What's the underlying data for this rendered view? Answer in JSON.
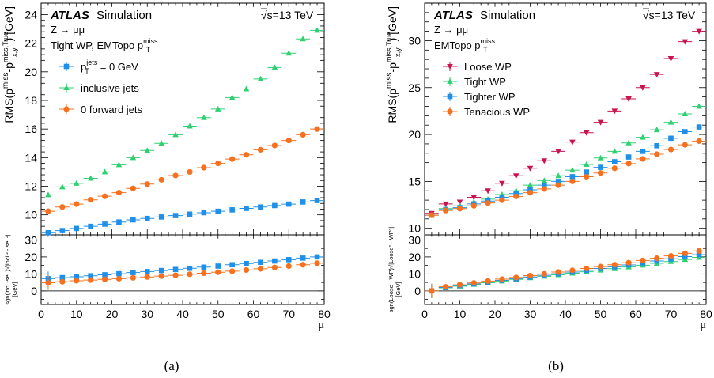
{
  "chart_data": [
    {
      "type": "scatter",
      "panel_label": "(a)",
      "header": {
        "experiment": "ATLAS",
        "status": "Simulation",
        "energy": "√s=13 TeV"
      },
      "annotations": [
        "Z → μμ",
        "Tight WP, EMTopo p",
        "miss",
        "T"
      ],
      "ylabel": "RMS(p",
      "ylabel_sup": "miss",
      "ylabel_mid": "-p",
      "ylabel_sup2": "miss,True",
      "ylabel_sub": "x,y",
      "ylabel_end": ") [GeV]",
      "xlabel": "μ",
      "ratio_ylabel": "sgn(incl.-sel.)√|incl.² - sel.²|",
      "ratio_ylabel_unit": "[GeV]",
      "xlim": [
        0,
        80
      ],
      "ylim": [
        8.6,
        24.8
      ],
      "ratio_ylim": [
        -8,
        33
      ],
      "xticks": [
        0,
        10,
        20,
        30,
        40,
        50,
        60,
        70,
        80
      ],
      "yticks": [
        10,
        12,
        14,
        16,
        18,
        20,
        22,
        24
      ],
      "ratio_yticks": [
        0,
        10,
        20,
        30
      ],
      "x": [
        2,
        6,
        10,
        14,
        18,
        22,
        26,
        30,
        34,
        38,
        42,
        46,
        50,
        54,
        58,
        62,
        66,
        70,
        74,
        78
      ],
      "series": [
        {
          "name": "p  = 0 GeV",
          "legend_sup": "jets",
          "legend_sub": "T",
          "marker": "square",
          "color": "#1f8fe8",
          "values": [
            8.75,
            8.9,
            9.05,
            9.2,
            9.35,
            9.5,
            9.65,
            9.75,
            9.85,
            9.95,
            10.05,
            10.15,
            10.25,
            10.35,
            10.45,
            10.55,
            10.65,
            10.75,
            10.9,
            11.0
          ]
        },
        {
          "name": "inclusive jets",
          "marker": "triangle",
          "color": "#2fcf72",
          "values": [
            11.4,
            11.95,
            12.2,
            12.55,
            13.0,
            13.5,
            14.0,
            14.5,
            15.0,
            15.6,
            16.2,
            16.8,
            17.4,
            18.2,
            18.8,
            19.5,
            20.3,
            21.3,
            22.3,
            22.9
          ]
        },
        {
          "name": "0 forward jets",
          "marker": "circle",
          "color": "#f5711f",
          "values": [
            10.25,
            10.55,
            10.75,
            11.05,
            11.3,
            11.55,
            11.85,
            12.15,
            12.45,
            12.75,
            13.0,
            13.3,
            13.6,
            13.9,
            14.2,
            14.55,
            14.85,
            15.2,
            15.6,
            16.0
          ]
        }
      ],
      "ratio_series": [
        {
          "ref": "p  = 0 GeV",
          "color": "#1f8fe8",
          "marker": "square",
          "values": [
            7.2,
            7.8,
            8.3,
            8.9,
            9.5,
            10.1,
            10.8,
            11.4,
            12.0,
            12.6,
            13.3,
            14.0,
            14.6,
            15.4,
            16.1,
            16.8,
            17.6,
            18.4,
            19.3,
            20.0
          ]
        },
        {
          "ref": "0 forward jets",
          "color": "#f5711f",
          "marker": "circle",
          "values": [
            4.8,
            5.4,
            6.0,
            6.4,
            6.8,
            7.2,
            7.7,
            8.2,
            8.7,
            9.2,
            9.8,
            10.4,
            11.0,
            11.6,
            12.3,
            13.0,
            13.8,
            14.6,
            15.4,
            16.3
          ]
        }
      ]
    },
    {
      "type": "scatter",
      "panel_label": "(b)",
      "header": {
        "experiment": "ATLAS",
        "status": "Simulation",
        "energy": "√s=13 TeV"
      },
      "annotations": [
        "Z → μμ",
        "EMTopo p",
        "miss",
        "T"
      ],
      "ylabel": "RMS(p",
      "ylabel_sup": "miss",
      "ylabel_mid": "-p",
      "ylabel_sup2": "miss,True",
      "ylabel_sub": "x,y",
      "ylabel_end": ") [GeV]",
      "xlabel": "μ",
      "ratio_ylabel": "sgn(Loose - WP)√|Loose² - WP²|",
      "ratio_ylabel_unit": "[GeV]",
      "xlim": [
        0,
        80
      ],
      "ylim": [
        9.3,
        34.0
      ],
      "ratio_ylim": [
        -8,
        33
      ],
      "xticks": [
        0,
        10,
        20,
        30,
        40,
        50,
        60,
        70,
        80
      ],
      "yticks": [
        10,
        15,
        20,
        25,
        30
      ],
      "ratio_yticks": [
        0,
        10,
        20,
        30
      ],
      "x": [
        2,
        6,
        10,
        14,
        18,
        22,
        26,
        30,
        34,
        38,
        42,
        46,
        50,
        54,
        58,
        62,
        66,
        70,
        74,
        78
      ],
      "series": [
        {
          "name": "Loose WP",
          "marker": "tri-down",
          "color": "#c8154d",
          "values": [
            11.6,
            12.6,
            12.8,
            13.3,
            14.0,
            14.8,
            15.6,
            16.4,
            17.2,
            18.2,
            19.2,
            20.2,
            21.3,
            22.5,
            23.8,
            25.0,
            26.4,
            28.1,
            29.9,
            31.0
          ]
        },
        {
          "name": "Tight WP",
          "marker": "triangle",
          "color": "#2fcf72",
          "values": [
            11.4,
            12.1,
            12.4,
            12.8,
            13.1,
            13.6,
            14.0,
            14.6,
            15.1,
            15.6,
            16.2,
            16.8,
            17.5,
            18.2,
            19.1,
            19.7,
            20.5,
            21.3,
            22.2,
            23.0
          ]
        },
        {
          "name": "Tighter WP",
          "marker": "square",
          "color": "#1f8fe8",
          "values": [
            11.4,
            12.0,
            12.2,
            12.6,
            12.9,
            13.3,
            13.7,
            14.1,
            14.6,
            15.0,
            15.5,
            16.0,
            16.5,
            17.1,
            17.6,
            18.2,
            18.8,
            19.6,
            20.3,
            20.8
          ]
        },
        {
          "name": "Tenacious WP",
          "marker": "circle",
          "color": "#f5711f",
          "values": [
            11.4,
            11.9,
            12.1,
            12.4,
            12.7,
            13.0,
            13.4,
            13.8,
            14.2,
            14.6,
            15.0,
            15.5,
            15.9,
            16.4,
            16.9,
            17.4,
            17.9,
            18.4,
            18.9,
            19.3
          ]
        }
      ],
      "ratio_series": [
        {
          "ref": "Tight WP",
          "color": "#2fcf72",
          "marker": "triangle",
          "values": [
            0.0,
            1.8,
            2.8,
            3.8,
            4.8,
            5.8,
            6.8,
            7.7,
            8.6,
            9.5,
            10.4,
            11.3,
            12.2,
            13.1,
            14.1,
            15.1,
            16.2,
            17.3,
            18.5,
            19.7
          ]
        },
        {
          "ref": "Tighter WP",
          "color": "#1f8fe8",
          "marker": "square",
          "values": [
            0.0,
            2.0,
            3.2,
            4.2,
            5.2,
            6.2,
            7.2,
            8.2,
            9.2,
            10.1,
            11.1,
            12.1,
            13.2,
            14.2,
            15.3,
            16.5,
            17.6,
            18.9,
            20.2,
            21.3
          ]
        },
        {
          "ref": "Tenacious WP",
          "color": "#f5711f",
          "marker": "circle",
          "values": [
            0.0,
            2.4,
            3.6,
            4.7,
            5.8,
            6.9,
            7.9,
            9.0,
            10.0,
            11.1,
            12.1,
            13.2,
            14.3,
            15.4,
            16.6,
            17.9,
            19.2,
            20.6,
            22.1,
            23.5
          ]
        }
      ]
    }
  ]
}
